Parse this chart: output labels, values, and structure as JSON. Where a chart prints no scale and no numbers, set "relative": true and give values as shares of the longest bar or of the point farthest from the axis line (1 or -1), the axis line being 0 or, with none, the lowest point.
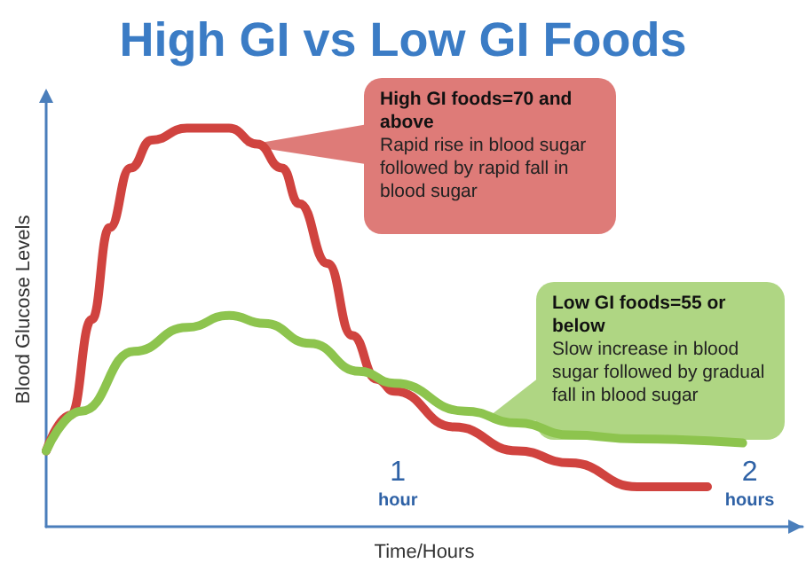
{
  "chart_data": {
    "type": "line",
    "title": "High GI vs Low GI Foods",
    "xlabel": "Time/Hours",
    "ylabel": "Blood Glucose Levels",
    "relative": true,
    "marker": "none",
    "xlim": [
      0,
      2.15
    ],
    "xticks": [
      {
        "value": 1,
        "label": "1 hour"
      },
      {
        "value": 2,
        "label": "2 hours"
      }
    ],
    "series": [
      {
        "color": "#d0433f",
        "x": [
          0,
          0.07,
          0.13,
          0.18,
          0.24,
          0.3,
          0.4,
          0.52,
          0.6,
          0.67,
          0.72,
          0.8,
          0.87,
          0.94,
          0.99,
          1.16,
          1.34,
          1.49,
          1.68,
          1.88
        ],
        "values": [
          0.19,
          0.28,
          0.52,
          0.75,
          0.9,
          0.97,
          1.0,
          1.0,
          0.96,
          0.9,
          0.81,
          0.66,
          0.48,
          0.37,
          0.34,
          0.25,
          0.19,
          0.16,
          0.1,
          0.1
        ]
      },
      {
        "color": "#8dc44e",
        "x": [
          0,
          0.1,
          0.25,
          0.4,
          0.52,
          0.62,
          0.75,
          0.89,
          0.99,
          1.19,
          1.34,
          1.49,
          1.68,
          1.98
        ],
        "values": [
          0.19,
          0.29,
          0.44,
          0.5,
          0.53,
          0.51,
          0.46,
          0.39,
          0.36,
          0.29,
          0.26,
          0.23,
          0.22,
          0.21
        ]
      }
    ],
    "annotations": [
      "High GI foods=70 and above",
      "Rapid rise in blood sugar followed by rapid fall in blood sugar",
      "Low GI foods=55 or below",
      "Slow increase in blood sugar followed by gradual fall in blood sugar"
    ]
  }
}
